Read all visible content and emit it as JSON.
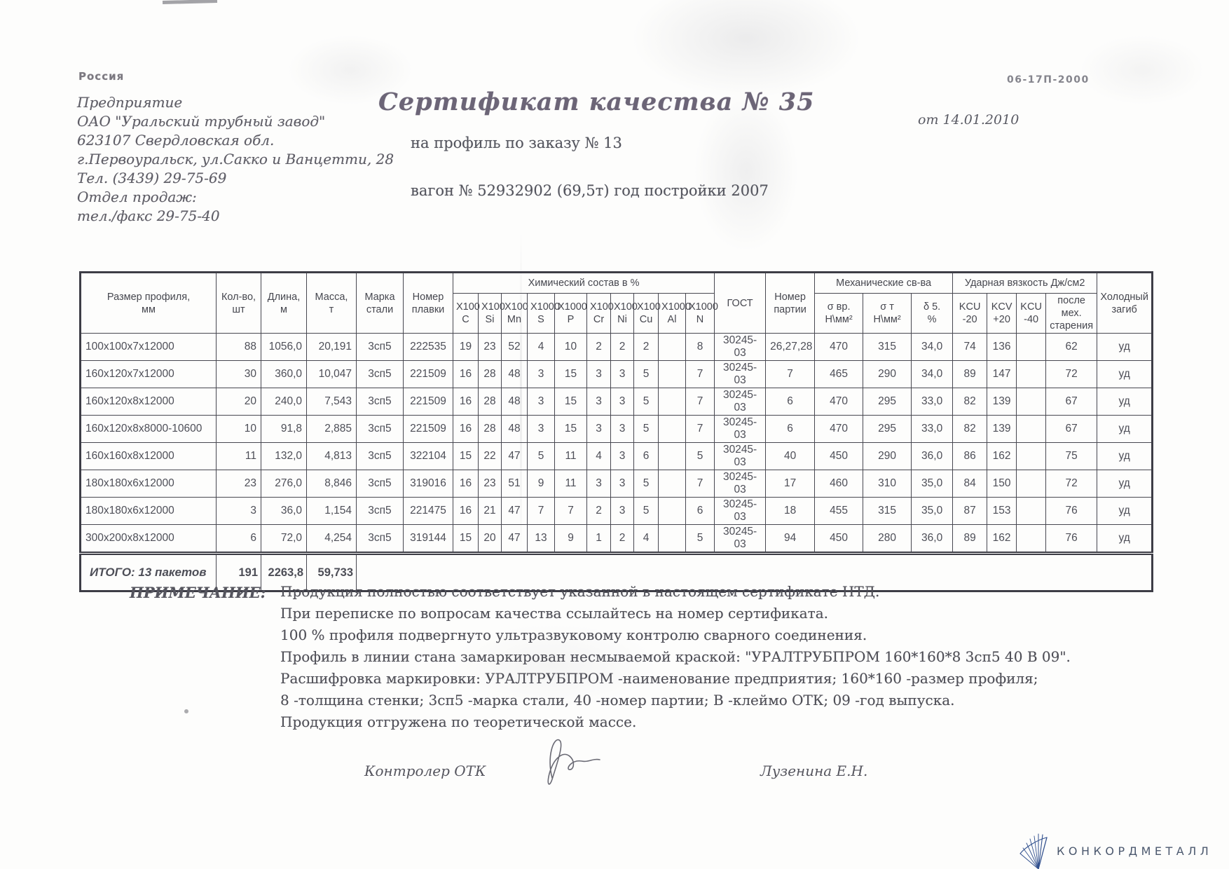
{
  "letterhead": {
    "country": "Россия",
    "lines": [
      "Предприятие",
      "ОАО \"Уральский трубный завод\"",
      "623107 Свердловская обл.",
      "г.Первоуральск, ул.Сакко и Ванцетти, 28",
      "Тел. (3439) 29-75-69",
      "Отдел продаж:",
      "тел./факс  29-75-40"
    ]
  },
  "header": {
    "doc_code": "06-17П-2000",
    "title": "Сертификат качества  № 35",
    "date_line": "от 14.01.2010",
    "subtitle": "на профиль по заказу № 13",
    "wagon_line": "вагон № 52932902 (69,5т) год постройки 2007"
  },
  "table": {
    "col_headers": {
      "size": "Размер профиля,\nмм",
      "qty": "Кол-во,\nшт",
      "length": "Длина,\nм",
      "mass": "Масса,\nт",
      "grade": "Марка\nстали",
      "heat": "Номер\nплавки",
      "chem_group": "Химический состав  в %",
      "chem": [
        "X100\nC",
        "X100\nSi",
        "X100\nMn",
        "X1000\nS",
        "X1000\nP",
        "X100\nCr",
        "X100\nNi",
        "X100\nCu",
        "X1000\nAl",
        "X1000\nN"
      ],
      "gost": "ГОСТ",
      "batch": "Номер\nпартии",
      "mech_group": "Механические св-ва",
      "mech": [
        "σ вр.\nН\\мм²",
        "σ т\nН\\мм²",
        "δ 5.\n%"
      ],
      "impact_group": "Ударная вязкость Дж/см2",
      "impact": [
        "KCU\n-20",
        "KCV\n+20",
        "KCU\n-40",
        "после мех.\nстарения"
      ],
      "bend": "Холодный\nзагиб"
    },
    "rows": [
      {
        "size": "100x100x7x12000",
        "qty": "88",
        "length": "1056,0",
        "mass": "20,191",
        "grade": "3сп5",
        "heat": "222535",
        "chem": [
          "19",
          "23",
          "52",
          "4",
          "10",
          "2",
          "2",
          "2",
          "",
          "8"
        ],
        "gost": "30245-03",
        "batch": "26,27,28",
        "mech": [
          "470",
          "315",
          "34,0"
        ],
        "impact": [
          "74",
          "136",
          "",
          "62"
        ],
        "bend": "уд"
      },
      {
        "size": "160x120x7x12000",
        "qty": "30",
        "length": "360,0",
        "mass": "10,047",
        "grade": "3сп5",
        "heat": "221509",
        "chem": [
          "16",
          "28",
          "48",
          "3",
          "15",
          "3",
          "3",
          "5",
          "",
          "7"
        ],
        "gost": "30245-03",
        "batch": "7",
        "mech": [
          "465",
          "290",
          "34,0"
        ],
        "impact": [
          "89",
          "147",
          "",
          "72"
        ],
        "bend": "уд"
      },
      {
        "size": "160x120x8x12000",
        "qty": "20",
        "length": "240,0",
        "mass": "7,543",
        "grade": "3сп5",
        "heat": "221509",
        "chem": [
          "16",
          "28",
          "48",
          "3",
          "15",
          "3",
          "3",
          "5",
          "",
          "7"
        ],
        "gost": "30245-03",
        "batch": "6",
        "mech": [
          "470",
          "295",
          "33,0"
        ],
        "impact": [
          "82",
          "139",
          "",
          "67"
        ],
        "bend": "уд"
      },
      {
        "size": "160x120x8x8000-10600",
        "qty": "10",
        "length": "91,8",
        "mass": "2,885",
        "grade": "3сп5",
        "heat": "221509",
        "chem": [
          "16",
          "28",
          "48",
          "3",
          "15",
          "3",
          "3",
          "5",
          "",
          "7"
        ],
        "gost": "30245-03",
        "batch": "6",
        "mech": [
          "470",
          "295",
          "33,0"
        ],
        "impact": [
          "82",
          "139",
          "",
          "67"
        ],
        "bend": "уд"
      },
      {
        "size": "160x160x8x12000",
        "qty": "11",
        "length": "132,0",
        "mass": "4,813",
        "grade": "3сп5",
        "heat": "322104",
        "chem": [
          "15",
          "22",
          "47",
          "5",
          "11",
          "4",
          "3",
          "6",
          "",
          "5"
        ],
        "gost": "30245-03",
        "batch": "40",
        "mech": [
          "450",
          "290",
          "36,0"
        ],
        "impact": [
          "86",
          "162",
          "",
          "75"
        ],
        "bend": "уд"
      },
      {
        "size": "180x180x6x12000",
        "qty": "23",
        "length": "276,0",
        "mass": "8,846",
        "grade": "3сп5",
        "heat": "319016",
        "chem": [
          "16",
          "23",
          "51",
          "9",
          "11",
          "3",
          "3",
          "5",
          "",
          "7"
        ],
        "gost": "30245-03",
        "batch": "17",
        "mech": [
          "460",
          "310",
          "35,0"
        ],
        "impact": [
          "84",
          "150",
          "",
          "72"
        ],
        "bend": "уд"
      },
      {
        "size": "180x180x6x12000",
        "qty": "3",
        "length": "36,0",
        "mass": "1,154",
        "grade": "3сп5",
        "heat": "221475",
        "chem": [
          "16",
          "21",
          "47",
          "7",
          "7",
          "2",
          "3",
          "5",
          "",
          "6"
        ],
        "gost": "30245-03",
        "batch": "18",
        "mech": [
          "455",
          "315",
          "35,0"
        ],
        "impact": [
          "87",
          "153",
          "",
          "76"
        ],
        "bend": "уд"
      },
      {
        "size": "300x200x8x12000",
        "qty": "6",
        "length": "72,0",
        "mass": "4,254",
        "grade": "3сп5",
        "heat": "319144",
        "chem": [
          "15",
          "20",
          "47",
          "13",
          "9",
          "1",
          "2",
          "4",
          "",
          "5"
        ],
        "gost": "30245-03",
        "batch": "94",
        "mech": [
          "450",
          "280",
          "36,0"
        ],
        "impact": [
          "89",
          "162",
          "",
          "76"
        ],
        "bend": "уд"
      }
    ],
    "total": {
      "label": "ИТОГО: 13 пакетов",
      "qty": "191",
      "length": "2263,8",
      "mass": "59,733"
    }
  },
  "notes": {
    "label": "ПРИМЕЧАНИЕ:",
    "lines": [
      "Продукция полностью соответствует указанной в настоящем сертификате НТД.",
      "При переписке по вопросам качества ссылайтесь на номер сертификата.",
      "100 % профиля подвергнуто ультразвуковому контролю сварного соединения.",
      "Профиль в линии стана замаркирован несмываемой краской: \"УРАЛТРУБПРОМ  160*160*8  3сп5 40  В  09\".",
      "Расшифровка маркировки: УРАЛТРУБПРОМ -наименование предприятия; 160*160 -размер профиля;",
      "8 -толщина стенки; 3сп5 -марка стали, 40 -номер партии; В -клеймо ОТК; 09 -год выпуска.",
      "Продукция отгружена по теоретической массе."
    ]
  },
  "signatures": {
    "controller_label": "Контролер ОТК",
    "name": "Лузенина Е.Н."
  },
  "footer": {
    "logo_icon": "fan-rays-icon",
    "logo_text": "КОНКОРДМЕТАЛЛ"
  }
}
